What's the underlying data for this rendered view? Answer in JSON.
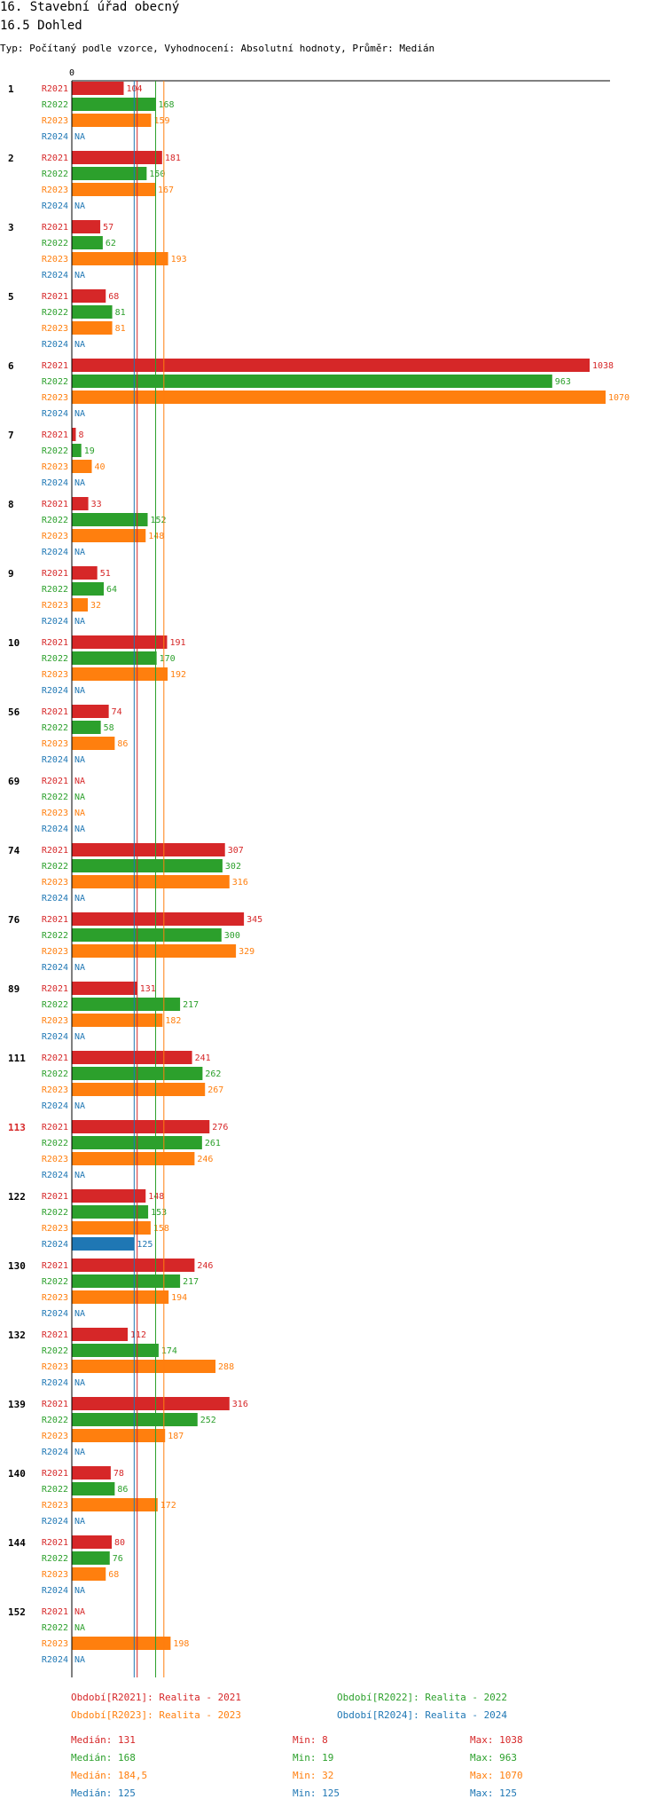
{
  "header": {
    "title": "16. Stavební úřad obecný",
    "subtitle_main": "16.5 Dohled",
    "info": "Typ: Počítaný podle vzorce, Vyhodnocení: Absolutní hodnoty, Průměr: Medián"
  },
  "colors": {
    "R2021": "#d62728",
    "R2022": "#2ca02c",
    "R2023": "#ff7f0e",
    "R2024": "#1f77b4",
    "highlight": "#d62728"
  },
  "chart_data": {
    "type": "bar",
    "orientation": "horizontal",
    "xlim": [
      0,
      1070
    ],
    "zero_tick": "0",
    "na_label": "NA",
    "series_keys": [
      "R2021",
      "R2022",
      "R2023",
      "R2024"
    ],
    "highlight_group": "113",
    "groups": [
      {
        "label": "1",
        "values": [
          104,
          168,
          159,
          null
        ]
      },
      {
        "label": "2",
        "values": [
          181,
          150,
          167,
          null
        ]
      },
      {
        "label": "3",
        "values": [
          57,
          62,
          193,
          null
        ]
      },
      {
        "label": "5",
        "values": [
          68,
          81,
          81,
          null
        ]
      },
      {
        "label": "6",
        "values": [
          1038,
          963,
          1070,
          null
        ]
      },
      {
        "label": "7",
        "values": [
          8,
          19,
          40,
          null
        ]
      },
      {
        "label": "8",
        "values": [
          33,
          152,
          148,
          null
        ]
      },
      {
        "label": "9",
        "values": [
          51,
          64,
          32,
          null
        ]
      },
      {
        "label": "10",
        "values": [
          191,
          170,
          192,
          null
        ]
      },
      {
        "label": "56",
        "values": [
          74,
          58,
          86,
          null
        ]
      },
      {
        "label": "69",
        "values": [
          null,
          null,
          null,
          null
        ]
      },
      {
        "label": "74",
        "values": [
          307,
          302,
          316,
          null
        ]
      },
      {
        "label": "76",
        "values": [
          345,
          300,
          329,
          null
        ]
      },
      {
        "label": "89",
        "values": [
          131,
          217,
          182,
          null
        ]
      },
      {
        "label": "111",
        "values": [
          241,
          262,
          267,
          null
        ]
      },
      {
        "label": "113",
        "values": [
          276,
          261,
          246,
          null
        ]
      },
      {
        "label": "122",
        "values": [
          148,
          153,
          158,
          125
        ]
      },
      {
        "label": "130",
        "values": [
          246,
          217,
          194,
          null
        ]
      },
      {
        "label": "132",
        "values": [
          112,
          174,
          288,
          null
        ]
      },
      {
        "label": "139",
        "values": [
          316,
          252,
          187,
          null
        ]
      },
      {
        "label": "140",
        "values": [
          78,
          86,
          172,
          null
        ]
      },
      {
        "label": "144",
        "values": [
          80,
          76,
          68,
          null
        ]
      },
      {
        "label": "152",
        "values": [
          null,
          null,
          198,
          null
        ]
      }
    ],
    "median_lines": [
      {
        "series": "R2021",
        "value": 131
      },
      {
        "series": "R2022",
        "value": 168
      },
      {
        "series": "R2023",
        "value": 184.5
      },
      {
        "series": "R2024",
        "value": 125
      }
    ]
  },
  "legend": [
    {
      "key": "R2021",
      "text": "Období[R2021]: Realita - 2021"
    },
    {
      "key": "R2022",
      "text": "Období[R2022]: Realita - 2022"
    },
    {
      "key": "R2023",
      "text": "Období[R2023]: Realita - 2023"
    },
    {
      "key": "R2024",
      "text": "Období[R2024]: Realita - 2024"
    }
  ],
  "stats": [
    {
      "key": "R2021",
      "median": "Medián: 131",
      "min": "Min: 8",
      "max": "Max: 1038"
    },
    {
      "key": "R2022",
      "median": "Medián: 168",
      "min": "Min: 19",
      "max": "Max: 963"
    },
    {
      "key": "R2023",
      "median": "Medián: 184,5",
      "min": "Min: 32",
      "max": "Max: 1070"
    },
    {
      "key": "R2024",
      "median": "Medián: 125",
      "min": "Min: 125",
      "max": "Max: 125"
    }
  ]
}
